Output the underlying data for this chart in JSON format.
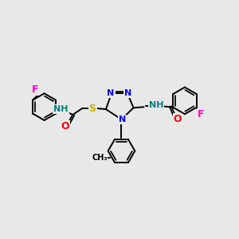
{
  "background_color": "#e8e8e8",
  "figsize": [
    3.0,
    3.0
  ],
  "dpi": 100,
  "atom_colors": {
    "N": "#0000ff",
    "O": "#ff0000",
    "S": "#ccaa00",
    "F": "#ff00cc",
    "NH": "#008080",
    "C": "#000000"
  },
  "bond_color": "#000000",
  "bond_width": 1.4
}
